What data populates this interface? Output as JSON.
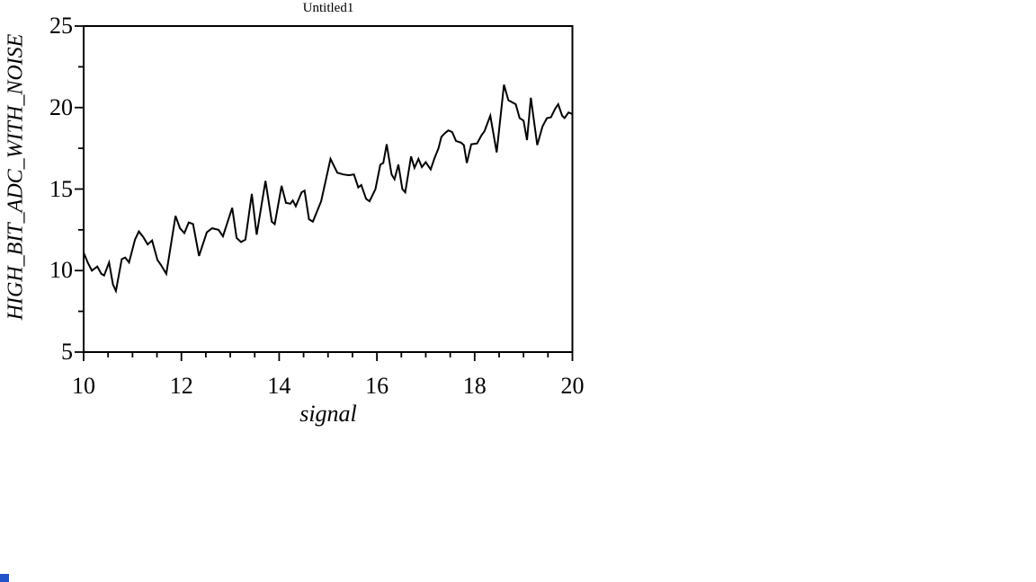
{
  "page": {
    "background": "#ffffff"
  },
  "chart_data": {
    "type": "line",
    "title": "Untitled1",
    "xlabel": "signal",
    "ylabel": "HIGH_BIT_ADC_WITH_NOISE",
    "xlim": [
      10,
      20
    ],
    "ylim": [
      5,
      25
    ],
    "x_major_ticks": [
      10,
      12,
      14,
      16,
      18,
      20
    ],
    "x_minor_tick_step": 0.5,
    "y_major_ticks": [
      5,
      10,
      15,
      20,
      25
    ],
    "y_minor_tick_step": 2.5,
    "grid": false,
    "legend": "none",
    "frame_color": "#000000",
    "line_color": "#000000",
    "series": [
      {
        "name": "HIGH_BIT_ADC_WITH_NOISE",
        "x": [
          10.0,
          10.09,
          10.17,
          10.28,
          10.36,
          10.42,
          10.52,
          10.6,
          10.66,
          10.78,
          10.85,
          10.93,
          11.05,
          11.13,
          11.22,
          11.31,
          11.4,
          11.51,
          11.58,
          11.69,
          11.88,
          11.97,
          12.06,
          12.15,
          12.24,
          12.36,
          12.52,
          12.63,
          12.76,
          12.85,
          13.04,
          13.13,
          13.22,
          13.31,
          13.44,
          13.54,
          13.72,
          13.85,
          13.91,
          14.05,
          14.14,
          14.23,
          14.28,
          14.34,
          14.46,
          14.52,
          14.61,
          14.69,
          14.86,
          15.05,
          15.19,
          15.31,
          15.43,
          15.53,
          15.62,
          15.68,
          15.78,
          15.85,
          15.97,
          16.07,
          16.13,
          16.2,
          16.3,
          16.36,
          16.44,
          16.52,
          16.58,
          16.7,
          16.77,
          16.85,
          16.92,
          17.0,
          17.1,
          17.18,
          17.26,
          17.32,
          17.38,
          17.46,
          17.54,
          17.62,
          17.72,
          17.78,
          17.84,
          17.93,
          18.05,
          18.14,
          18.2,
          18.32,
          18.45,
          18.6,
          18.69,
          18.78,
          18.84,
          18.92,
          19.0,
          19.07,
          19.15,
          19.28,
          19.39,
          19.48,
          19.56,
          19.65,
          19.71,
          19.79,
          19.84,
          19.92,
          20.0
        ],
        "y": [
          11.1,
          10.45,
          10.0,
          10.25,
          9.8,
          9.7,
          10.5,
          9.15,
          8.75,
          10.7,
          10.8,
          10.5,
          11.9,
          12.4,
          12.05,
          11.6,
          11.85,
          10.65,
          10.35,
          9.8,
          13.35,
          12.6,
          12.3,
          12.95,
          12.85,
          10.9,
          12.35,
          12.6,
          12.5,
          12.1,
          13.85,
          12.0,
          11.75,
          11.9,
          14.7,
          12.2,
          15.5,
          13.0,
          12.85,
          15.2,
          14.15,
          14.1,
          14.3,
          13.95,
          14.8,
          14.9,
          13.15,
          13.0,
          14.25,
          16.85,
          16.0,
          15.9,
          15.85,
          15.9,
          15.1,
          15.25,
          14.4,
          14.25,
          15.0,
          16.5,
          16.6,
          17.75,
          15.9,
          15.6,
          16.5,
          15.0,
          14.8,
          17.0,
          16.3,
          16.85,
          16.35,
          16.65,
          16.2,
          16.9,
          17.5,
          18.2,
          18.4,
          18.6,
          18.5,
          17.95,
          17.85,
          17.7,
          16.6,
          17.75,
          17.8,
          18.3,
          18.55,
          19.5,
          17.25,
          21.4,
          20.45,
          20.3,
          20.2,
          19.35,
          19.2,
          18.0,
          20.6,
          17.7,
          18.85,
          19.35,
          19.4,
          19.95,
          20.2,
          19.5,
          19.35,
          19.7,
          19.6
        ]
      }
    ]
  },
  "corner_marker": {
    "color": "#2353cb"
  }
}
